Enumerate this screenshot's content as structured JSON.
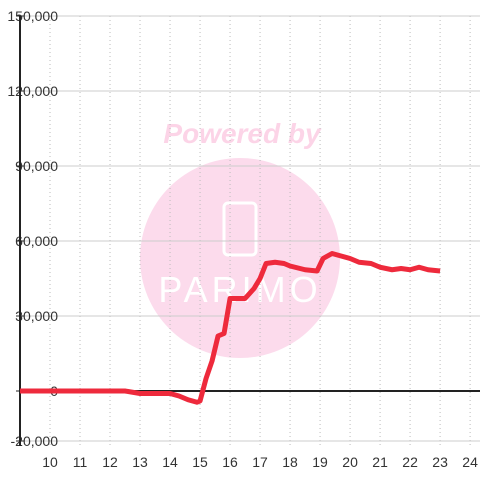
{
  "chart_data": {
    "type": "line",
    "watermark": [
      "Powered by",
      "PARIMO"
    ],
    "x": [
      9,
      12.5,
      13,
      14,
      14.3,
      14.6,
      14.9,
      15.0,
      15.2,
      15.4,
      15.6,
      15.8,
      16.0,
      16.5,
      16.8,
      17.0,
      17.2,
      17.5,
      17.8,
      18.0,
      18.5,
      18.9,
      19.1,
      19.4,
      19.7,
      20.0,
      20.3,
      20.7,
      21.0,
      21.4,
      21.7,
      22.0,
      22.3,
      22.6,
      23.0
    ],
    "series": [
      {
        "color": "#ee2a3c",
        "values": [
          0,
          0,
          -1000,
          -1000,
          -2000,
          -3500,
          -4500,
          -4000,
          5000,
          12000,
          22000,
          23000,
          37000,
          37000,
          41000,
          45000,
          51000,
          51500,
          51000,
          50000,
          48500,
          48000,
          53000,
          55000,
          54000,
          53000,
          51500,
          51000,
          49500,
          48500,
          49000,
          48500,
          49500,
          48500,
          48000
        ]
      }
    ],
    "xlim": [
      9,
      24.33
    ],
    "xticks": [
      10,
      11,
      12,
      13,
      14,
      15,
      16,
      17,
      18,
      19,
      20,
      21,
      22,
      23,
      24
    ],
    "ylim": [
      -22000,
      150000
    ],
    "yticks": [
      {
        "value": -20000,
        "label": "-20,000"
      },
      0,
      {
        "value": 30000,
        "label": "30,000"
      },
      {
        "value": 60000,
        "label": "60,000"
      },
      {
        "value": 90000,
        "label": "90,000"
      },
      {
        "value": 120000,
        "label": "120,000"
      },
      {
        "value": 150000,
        "label": "150,000"
      }
    ],
    "grid": true
  }
}
